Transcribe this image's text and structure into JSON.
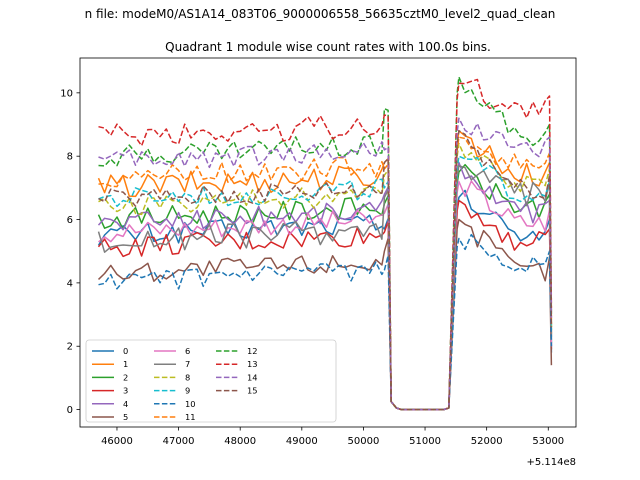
{
  "figure": {
    "suptitle": "n file: modeM0/AS1A14_083T06_9000006558_56635cztM0_level2_quad_clean",
    "title": "Quadrant 1 module wise count rates with 100.0s bins."
  },
  "chart_data": {
    "type": "line",
    "title": "Quadrant 1 module wise count rates with 100.0s bins.",
    "xlabel": "",
    "ylabel": "",
    "x_offset_label": "+5.114e8",
    "x_offset": 511400000,
    "xlim": [
      45400,
      53450
    ],
    "ylim": [
      -0.55,
      11.1
    ],
    "xticks": [
      46000,
      47000,
      48000,
      49000,
      50000,
      51000,
      52000,
      53000
    ],
    "xtick_labels": [
      "46000",
      "47000",
      "48000",
      "49000",
      "50000",
      "51000",
      "52000",
      "53000"
    ],
    "yticks": [
      0,
      2,
      4,
      6,
      8,
      10
    ],
    "ytick_labels": [
      "0",
      "2",
      "4",
      "6",
      "8",
      "10"
    ],
    "grid": false,
    "legend_position": "lower-left",
    "legend_columns": 4,
    "x_start": 45700,
    "x_step": 100,
    "segments": {
      "before_gap_end": 50400,
      "gap_values": [
        0.25,
        0.05,
        0,
        0,
        0,
        0,
        0,
        0,
        0,
        0,
        0,
        0.05
      ],
      "after_gap_start": 51550,
      "x_end": 53050
    },
    "series": [
      {
        "name": "0",
        "color": "#1f77b4",
        "dash": "solid",
        "level_before": 5.5,
        "peak": 6.7,
        "level_after": 5.6,
        "end_value": 1.8,
        "amplitude": 0.35
      },
      {
        "name": "1",
        "color": "#ff7f0e",
        "dash": "solid",
        "level_before": 7.0,
        "peak": 8.8,
        "level_after": 7.4,
        "end_value": 2.4,
        "amplitude": 0.4
      },
      {
        "name": "2",
        "color": "#2ca02c",
        "dash": "solid",
        "level_before": 6.0,
        "peak": 7.5,
        "level_after": 6.4,
        "end_value": 2.1,
        "amplitude": 0.35
      },
      {
        "name": "3",
        "color": "#d62728",
        "dash": "solid",
        "level_before": 5.1,
        "peak": 6.6,
        "level_after": 5.3,
        "end_value": 1.9,
        "amplitude": 0.35
      },
      {
        "name": "4",
        "color": "#9467bd",
        "dash": "solid",
        "level_before": 5.9,
        "peak": 7.8,
        "level_after": 6.2,
        "end_value": 2.2,
        "amplitude": 0.35
      },
      {
        "name": "5",
        "color": "#8c564b",
        "dash": "solid",
        "level_before": 4.3,
        "peak": 6.0,
        "level_after": 4.4,
        "end_value": 1.4,
        "amplitude": 0.35
      },
      {
        "name": "6",
        "color": "#e377c2",
        "dash": "solid",
        "level_before": 5.6,
        "peak": 7.2,
        "level_after": 5.9,
        "end_value": 2.0,
        "amplitude": 0.35
      },
      {
        "name": "7",
        "color": "#7f7f7f",
        "dash": "solid",
        "level_before": 5.3,
        "peak": 7.7,
        "level_after": 6.8,
        "end_value": 2.3,
        "amplitude": 0.4
      },
      {
        "name": "8",
        "color": "#bcbd22",
        "dash": "dashed",
        "level_before": 6.4,
        "peak": 8.4,
        "level_after": 7.2,
        "end_value": 2.6,
        "amplitude": 0.35
      },
      {
        "name": "9",
        "color": "#17becf",
        "dash": "dashed",
        "level_before": 6.6,
        "peak": 8.0,
        "level_after": 6.8,
        "end_value": 2.5,
        "amplitude": 0.35
      },
      {
        "name": "10",
        "color": "#1f77b4",
        "dash": "dashed",
        "level_before": 4.0,
        "peak": 5.4,
        "level_after": 4.6,
        "end_value": 2.0,
        "amplitude": 0.3
      },
      {
        "name": "11",
        "color": "#ff7f0e",
        "dash": "dashed",
        "level_before": 7.3,
        "peak": 8.6,
        "level_after": 7.7,
        "end_value": 2.7,
        "amplitude": 0.35
      },
      {
        "name": "12",
        "color": "#2ca02c",
        "dash": "dashed",
        "level_before": 8.0,
        "peak": 10.5,
        "level_after": 8.6,
        "end_value": 3.0,
        "amplitude": 0.35
      },
      {
        "name": "13",
        "color": "#d62728",
        "dash": "dashed",
        "level_before": 8.6,
        "peak": 10.3,
        "level_after": 9.5,
        "end_value": 3.2,
        "amplitude": 0.4
      },
      {
        "name": "14",
        "color": "#9467bd",
        "dash": "dashed",
        "level_before": 7.8,
        "peak": 9.2,
        "level_after": 8.2,
        "end_value": 2.9,
        "amplitude": 0.35
      },
      {
        "name": "15",
        "color": "#8c564b",
        "dash": "dashed",
        "level_before": 6.6,
        "peak": 8.8,
        "level_after": 7.0,
        "end_value": 2.6,
        "amplitude": 0.35
      }
    ]
  }
}
